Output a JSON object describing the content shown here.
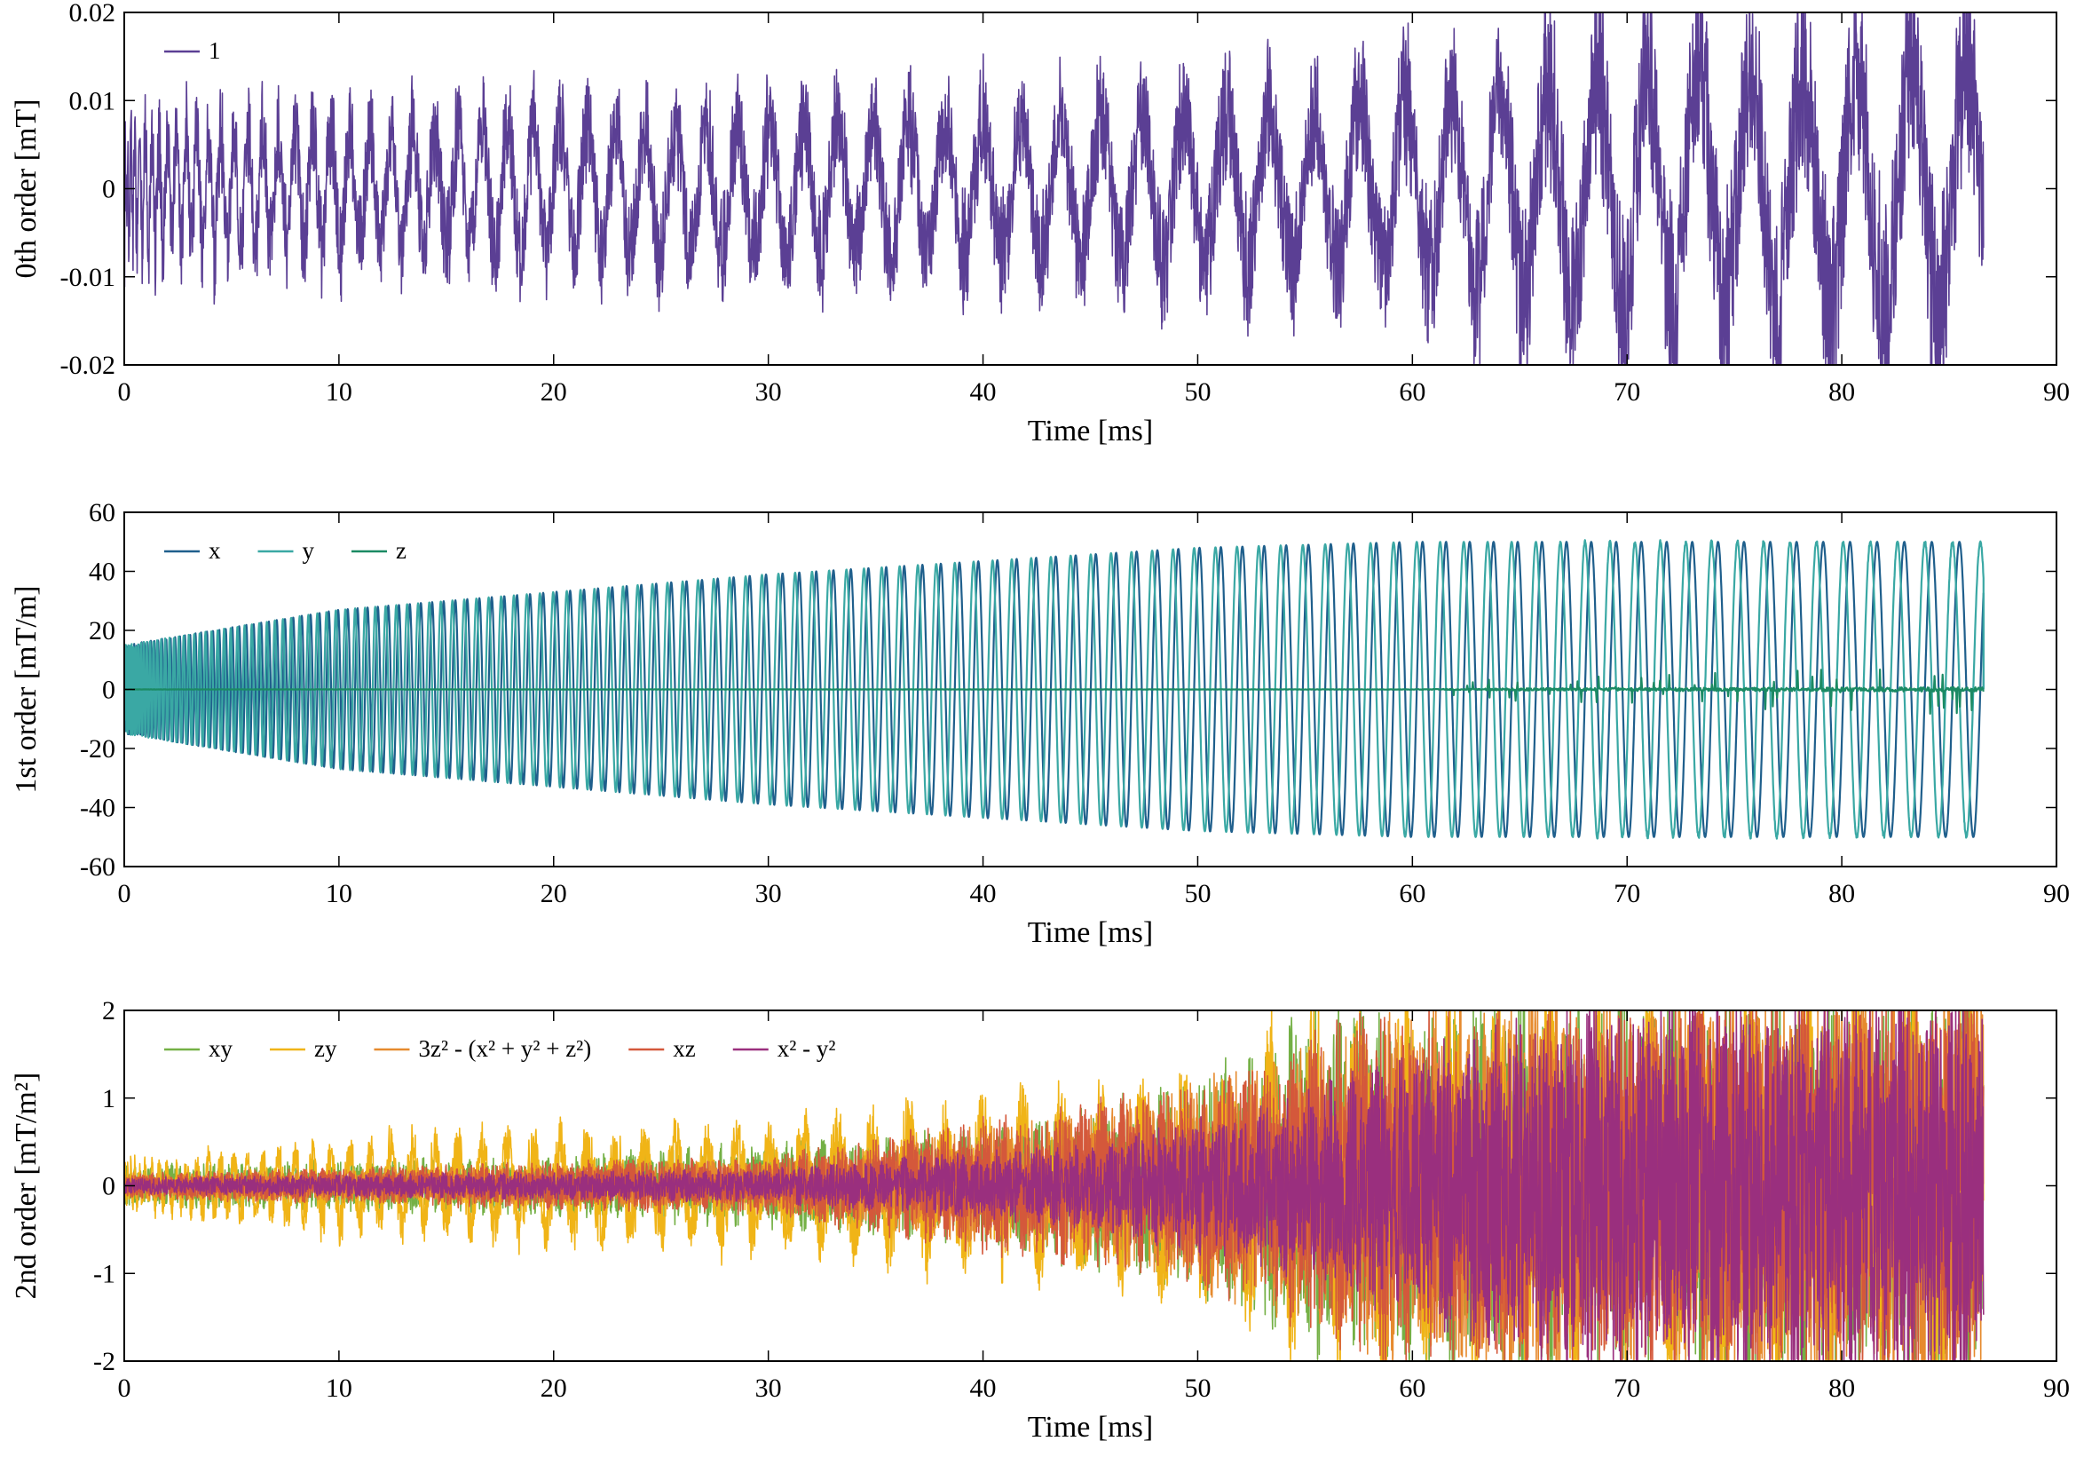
{
  "chart_data": [
    {
      "type": "line",
      "xlabel": "Time [ms]",
      "ylabel": "0th order [mT]",
      "xlim": [
        0,
        90
      ],
      "ylim": [
        -0.02,
        0.02
      ],
      "xticks": [
        "0",
        "10",
        "20",
        "30",
        "40",
        "50",
        "60",
        "70",
        "80",
        "90"
      ],
      "yticks": [
        "0.02",
        "0.01",
        "0",
        "-0.01",
        "-0.02"
      ],
      "grid": false,
      "legend_position": "top-left",
      "series": [
        {
          "name": "1",
          "color": "#5b3f94",
          "x_range": [
            0,
            86.6
          ],
          "pattern": "oscillating noise",
          "envelope": [
            {
              "x": 0,
              "amp": 0.011
            },
            {
              "x": 20,
              "amp": 0.012
            },
            {
              "x": 40,
              "amp": 0.013
            },
            {
              "x": 55,
              "amp": 0.015
            },
            {
              "x": 62,
              "amp": 0.018
            },
            {
              "x": 66,
              "amp": 0.022
            },
            {
              "x": 86.6,
              "amp": 0.025
            }
          ]
        }
      ]
    },
    {
      "type": "line",
      "xlabel": "Time [ms]",
      "ylabel": "1st order [mT/m]",
      "xlim": [
        0,
        90
      ],
      "ylim": [
        -60,
        60
      ],
      "xticks": [
        "0",
        "10",
        "20",
        "30",
        "40",
        "50",
        "60",
        "70",
        "80",
        "90"
      ],
      "yticks": [
        "60",
        "40",
        "20",
        "0",
        "-20",
        "-40",
        "-60"
      ],
      "grid": false,
      "legend_position": "top-left",
      "series": [
        {
          "name": "x",
          "color": "#1f5f8c",
          "x_range": [
            0,
            86.6
          ],
          "pattern": "sine, phase 0",
          "envelope": [
            {
              "x": 0,
              "amp": 15
            },
            {
              "x": 10,
              "amp": 27
            },
            {
              "x": 30,
              "amp": 39
            },
            {
              "x": 50,
              "amp": 48
            },
            {
              "x": 60,
              "amp": 50
            },
            {
              "x": 86.6,
              "amp": 50
            }
          ]
        },
        {
          "name": "y",
          "color": "#3aa8a4",
          "x_range": [
            0,
            86.6
          ],
          "pattern": "sine, phase 90 deg",
          "envelope": [
            {
              "x": 0,
              "amp": 15
            },
            {
              "x": 10,
              "amp": 27
            },
            {
              "x": 30,
              "amp": 39
            },
            {
              "x": 50,
              "amp": 48
            },
            {
              "x": 60,
              "amp": 50
            },
            {
              "x": 86.6,
              "amp": 50
            }
          ]
        },
        {
          "name": "z",
          "color": "#1b8a63",
          "x_range": [
            0,
            86.6
          ],
          "pattern": "near zero, spikes after 60 ms",
          "envelope": [
            {
              "x": 0,
              "amp": 0.3
            },
            {
              "x": 60,
              "amp": 0.5
            },
            {
              "x": 66,
              "amp": 3
            },
            {
              "x": 86.6,
              "amp": 5
            }
          ]
        }
      ]
    },
    {
      "type": "line",
      "xlabel": "Time [ms]",
      "ylabel": "2nd order [mT/m²]",
      "xlim": [
        0,
        90
      ],
      "ylim": [
        -2,
        2
      ],
      "xticks": [
        "0",
        "10",
        "20",
        "30",
        "40",
        "50",
        "60",
        "70",
        "80",
        "90"
      ],
      "yticks": [
        "2",
        "1",
        "0",
        "-1",
        "-2"
      ],
      "grid": false,
      "legend_position": "top-left",
      "series": [
        {
          "name": "xy",
          "color": "#74b045",
          "x_range": [
            0,
            86.6
          ],
          "pattern": "noise",
          "envelope": [
            {
              "x": 0,
              "amp": 0.25
            },
            {
              "x": 20,
              "amp": 0.35
            },
            {
              "x": 40,
              "amp": 0.7
            },
            {
              "x": 50,
              "amp": 1.3
            },
            {
              "x": 56,
              "amp": 2.2
            },
            {
              "x": 86.6,
              "amp": 2.4
            }
          ]
        },
        {
          "name": "zy",
          "color": "#f0b417",
          "x_range": [
            0,
            86.6
          ],
          "pattern": "oscillating noise",
          "envelope": [
            {
              "x": 0,
              "amp": 0.3
            },
            {
              "x": 10,
              "amp": 0.6
            },
            {
              "x": 30,
              "amp": 0.8
            },
            {
              "x": 50,
              "amp": 1.3
            },
            {
              "x": 56,
              "amp": 2.2
            },
            {
              "x": 86.6,
              "amp": 2.4
            }
          ]
        },
        {
          "name": "3z² - (x² + y² + z²)",
          "color": "#e68a2e",
          "x_range": [
            0,
            86.6
          ],
          "pattern": "noise",
          "envelope": [
            {
              "x": 0,
              "amp": 0.15
            },
            {
              "x": 30,
              "amp": 0.3
            },
            {
              "x": 45,
              "amp": 0.9
            },
            {
              "x": 55,
              "amp": 1.6
            },
            {
              "x": 60,
              "amp": 2.2
            },
            {
              "x": 86.6,
              "amp": 2.4
            }
          ]
        },
        {
          "name": "xz",
          "color": "#d4583b",
          "x_range": [
            0,
            86.6
          ],
          "pattern": "noise",
          "envelope": [
            {
              "x": 0,
              "amp": 0.15
            },
            {
              "x": 30,
              "amp": 0.35
            },
            {
              "x": 40,
              "amp": 0.8
            },
            {
              "x": 50,
              "amp": 1.2
            },
            {
              "x": 58,
              "amp": 2.1
            },
            {
              "x": 86.6,
              "amp": 2.4
            }
          ]
        },
        {
          "name": "x² - y²",
          "color": "#9a2f7e",
          "x_range": [
            0,
            86.6
          ],
          "pattern": "noise",
          "envelope": [
            {
              "x": 0,
              "amp": 0.1
            },
            {
              "x": 30,
              "amp": 0.2
            },
            {
              "x": 45,
              "amp": 0.5
            },
            {
              "x": 55,
              "amp": 1.1
            },
            {
              "x": 62,
              "amp": 1.8
            },
            {
              "x": 68,
              "amp": 2.3
            },
            {
              "x": 86.6,
              "amp": 2.4
            }
          ]
        }
      ]
    }
  ]
}
